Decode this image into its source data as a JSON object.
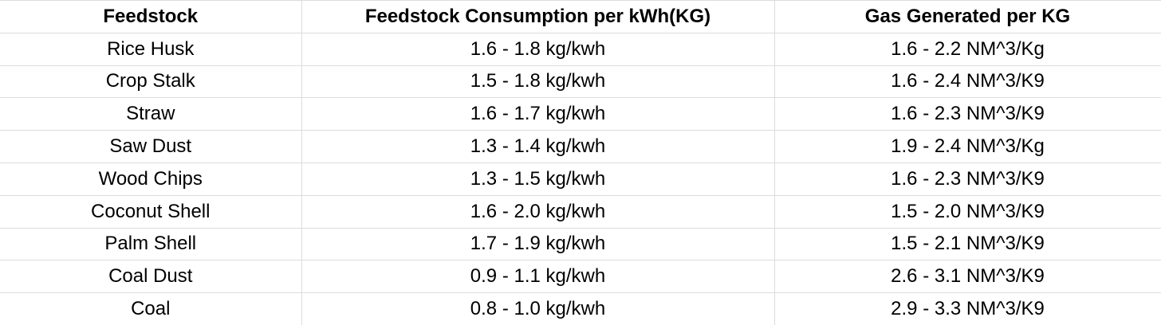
{
  "chart_data": {
    "type": "table",
    "columns": [
      "Feedstock",
      "Feedstock Consumption per kWh(KG)",
      "Gas Generated per KG"
    ],
    "rows": [
      [
        "Rice Husk",
        "1.6 - 1.8 kg/kwh",
        "1.6 - 2.2 NM^3/Kg"
      ],
      [
        "Crop Stalk",
        "1.5 - 1.8 kg/kwh",
        "1.6 - 2.4 NM^3/K9"
      ],
      [
        "Straw",
        "1.6 - 1.7 kg/kwh",
        "1.6 - 2.3 NM^3/K9"
      ],
      [
        "Saw Dust",
        "1.3 - 1.4 kg/kwh",
        "1.9 - 2.4 NM^3/Kg"
      ],
      [
        "Wood Chips",
        "1.3 - 1.5 kg/kwh",
        "1.6 - 2.3 NM^3/K9"
      ],
      [
        "Coconut Shell",
        "1.6 - 2.0 kg/kwh",
        "1.5 - 2.0 NM^3/K9"
      ],
      [
        "Palm Shell",
        "1.7 - 1.9 kg/kwh",
        "1.5 - 2.1 NM^3/K9"
      ],
      [
        "Coal Dust",
        "0.9 - 1.1 kg/kwh",
        "2.6 - 3.1 NM^3/K9"
      ],
      [
        "Coal",
        "0.8 - 1.0 kg/kwh",
        "2.9 - 3.3 NM^3/K9"
      ]
    ],
    "layout": {
      "grid": true,
      "header_bold": true,
      "text_align": "center"
    },
    "colors": {
      "gridline": "#dcdcdc",
      "text": "#000000",
      "background": "#ffffff"
    }
  }
}
